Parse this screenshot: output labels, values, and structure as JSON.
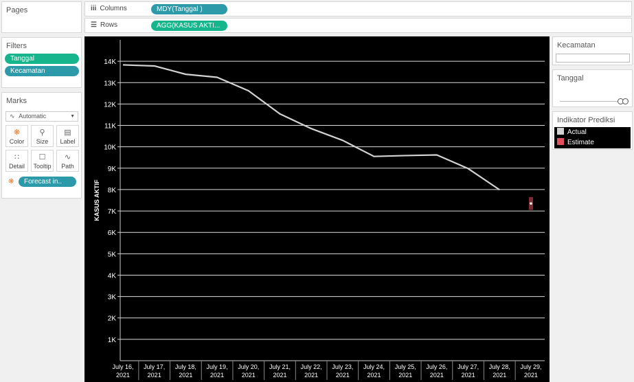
{
  "pages": {
    "title": "Pages"
  },
  "columns_shelf": {
    "label": "Columns",
    "pill": "MDY(Tanggal )"
  },
  "rows_shelf": {
    "label": "Rows",
    "pill": "AGG(KASUS AKTI..."
  },
  "filters": {
    "title": "Filters",
    "items": [
      "Tanggal",
      "Kecamatan"
    ]
  },
  "marks": {
    "title": "Marks",
    "type": "Automatic",
    "buttons": [
      "Color",
      "Size",
      "Label",
      "Detail",
      "Tooltip",
      "Path"
    ],
    "color_pill": "Forecast in.."
  },
  "kecamatan_filter": {
    "title": "Kecamatan",
    "value": ""
  },
  "tanggal_filter": {
    "title": "Tanggal"
  },
  "legend": {
    "title": "Indikator Prediksi",
    "items": [
      {
        "label": "Actual",
        "color": "#d3d3d3"
      },
      {
        "label": "Estimate",
        "color": "#e0505f"
      }
    ]
  },
  "chart_data": {
    "type": "line",
    "ylabel": "KASUS AKTIF",
    "ylim": [
      0,
      15000
    ],
    "y_ticks": [
      "1K",
      "2K",
      "3K",
      "4K",
      "5K",
      "6K",
      "7K",
      "8K",
      "9K",
      "10K",
      "11K",
      "12K",
      "13K",
      "14K"
    ],
    "y_tick_values": [
      1000,
      2000,
      3000,
      4000,
      5000,
      6000,
      7000,
      8000,
      9000,
      10000,
      11000,
      12000,
      13000,
      14000
    ],
    "categories": [
      [
        "July 16,",
        "2021"
      ],
      [
        "July 17,",
        "2021"
      ],
      [
        "July 18,",
        "2021"
      ],
      [
        "July 19,",
        "2021"
      ],
      [
        "July 20,",
        "2021"
      ],
      [
        "July 21,",
        "2021"
      ],
      [
        "July 22,",
        "2021"
      ],
      [
        "July 23,",
        "2021"
      ],
      [
        "July 24,",
        "2021"
      ],
      [
        "July 25,",
        "2021"
      ],
      [
        "July 26,",
        "2021"
      ],
      [
        "July 27,",
        "2021"
      ],
      [
        "July 28,",
        "2021"
      ],
      [
        "July 29,",
        "2021"
      ]
    ],
    "series": [
      {
        "name": "Actual",
        "color": "#d3d3d3",
        "values": [
          13830,
          13780,
          13390,
          13250,
          12620,
          11540,
          10850,
          10300,
          9550,
          9590,
          9620,
          8980,
          7990,
          null
        ]
      },
      {
        "name": "Estimate",
        "color": "#e0505f",
        "values": [
          null,
          null,
          null,
          null,
          null,
          null,
          null,
          null,
          null,
          null,
          null,
          null,
          null,
          7350
        ],
        "band": [
          7050,
          7650
        ]
      }
    ],
    "grid": true,
    "background": "#000000"
  }
}
